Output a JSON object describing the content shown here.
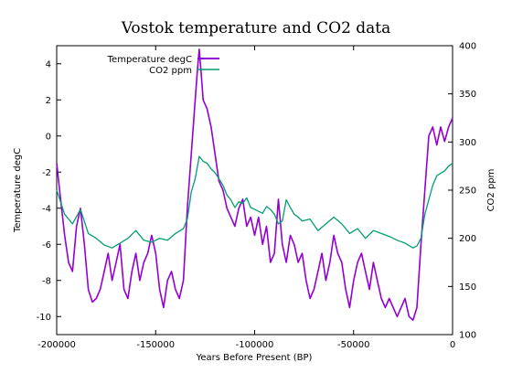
{
  "chart_data": {
    "type": "line",
    "title": "Vostok temperature and CO2 data",
    "xlabel": "Years Before Present (BP)",
    "ylabel": "Temperature degC",
    "y2label": "CO2 ppm",
    "xlim": [
      -200000,
      0
    ],
    "ylim": [
      -11,
      5
    ],
    "y2lim": [
      100,
      400
    ],
    "x_ticks": [
      -200000,
      -150000,
      -100000,
      -50000,
      0
    ],
    "x_tick_labels": [
      "-200000",
      "-150000",
      "-100000",
      "-50000",
      "0"
    ],
    "y_ticks": [
      4,
      2,
      0,
      -2,
      -4,
      -6,
      -8,
      -10
    ],
    "y_tick_labels": [
      "4",
      "2",
      "0",
      "-2",
      "-4",
      "-6",
      "-8",
      "-10"
    ],
    "y2_ticks": [
      100,
      150,
      200,
      250,
      300,
      350,
      400
    ],
    "y2_tick_labels": [
      "100",
      "150",
      "200",
      "250",
      "300",
      "350",
      "400"
    ],
    "grid": false,
    "legend": {
      "placement": "top-left"
    },
    "series": [
      {
        "name": "Temperature degC",
        "axis": "left",
        "color": "#9400d3",
        "x": [
          -200000,
          -198000,
          -196000,
          -194000,
          -192000,
          -190000,
          -188000,
          -186000,
          -184000,
          -182000,
          -180000,
          -178000,
          -176000,
          -174000,
          -172000,
          -170000,
          -168000,
          -166000,
          -164000,
          -162000,
          -160000,
          -158000,
          -156000,
          -154000,
          -152000,
          -150000,
          -148000,
          -146000,
          -144000,
          -142000,
          -140000,
          -138000,
          -136000,
          -134000,
          -132000,
          -130000,
          -129000,
          -128000,
          -127000,
          -126000,
          -124000,
          -122000,
          -120000,
          -118000,
          -116000,
          -114000,
          -112000,
          -110000,
          -108000,
          -106000,
          -104000,
          -102000,
          -100000,
          -98000,
          -96000,
          -94000,
          -92000,
          -90000,
          -88000,
          -86000,
          -84000,
          -82000,
          -80000,
          -78000,
          -76000,
          -74000,
          -72000,
          -70000,
          -68000,
          -66000,
          -64000,
          -62000,
          -60000,
          -58000,
          -56000,
          -54000,
          -52000,
          -50000,
          -48000,
          -46000,
          -44000,
          -42000,
          -40000,
          -38000,
          -36000,
          -34000,
          -32000,
          -30000,
          -28000,
          -26000,
          -24000,
          -22000,
          -20000,
          -18000,
          -16000,
          -14000,
          -12000,
          -10000,
          -8000,
          -6000,
          -4000,
          -2000,
          0
        ],
        "values": [
          -1.5,
          -3.5,
          -5.5,
          -7.0,
          -7.5,
          -5.0,
          -4.0,
          -6.0,
          -8.5,
          -9.2,
          -9.0,
          -8.5,
          -7.5,
          -6.5,
          -8.0,
          -7.0,
          -6.0,
          -8.5,
          -9.0,
          -7.5,
          -6.5,
          -8.0,
          -7.0,
          -6.5,
          -5.5,
          -6.5,
          -8.5,
          -9.5,
          -8.0,
          -7.5,
          -8.5,
          -9.0,
          -8.0,
          -4.0,
          -1.0,
          2.0,
          3.5,
          4.8,
          3.5,
          2.0,
          1.5,
          0.5,
          -1.0,
          -2.5,
          -3.0,
          -4.0,
          -4.5,
          -5.0,
          -4.0,
          -3.5,
          -5.0,
          -4.5,
          -5.5,
          -4.5,
          -6.0,
          -5.0,
          -7.0,
          -6.5,
          -3.5,
          -6.0,
          -7.0,
          -5.5,
          -6.0,
          -7.0,
          -6.5,
          -8.0,
          -9.0,
          -8.5,
          -7.5,
          -6.5,
          -8.0,
          -7.0,
          -5.5,
          -6.5,
          -7.0,
          -8.5,
          -9.5,
          -8.0,
          -7.0,
          -6.5,
          -7.5,
          -8.5,
          -7.0,
          -8.0,
          -9.0,
          -9.5,
          -9.0,
          -9.5,
          -10.0,
          -9.5,
          -9.0,
          -10.0,
          -10.2,
          -9.5,
          -6.0,
          -3.0,
          0.0,
          0.5,
          -0.5,
          0.5,
          -0.3,
          0.5,
          1.0
        ]
      },
      {
        "name": "CO2 ppm",
        "axis": "right",
        "color": "#009e73",
        "x": [
          -200000,
          -196000,
          -192000,
          -188000,
          -184000,
          -180000,
          -176000,
          -172000,
          -168000,
          -164000,
          -160000,
          -156000,
          -152000,
          -148000,
          -144000,
          -140000,
          -136000,
          -134000,
          -132000,
          -130000,
          -128000,
          -126000,
          -124000,
          -122000,
          -120000,
          -118000,
          -116000,
          -114000,
          -112000,
          -110000,
          -108000,
          -106000,
          -104000,
          -102000,
          -100000,
          -98000,
          -96000,
          -94000,
          -92000,
          -90000,
          -88000,
          -86000,
          -84000,
          -82000,
          -80000,
          -78000,
          -76000,
          -72000,
          -68000,
          -64000,
          -60000,
          -56000,
          -52000,
          -48000,
          -44000,
          -40000,
          -36000,
          -32000,
          -28000,
          -24000,
          -20000,
          -18000,
          -16000,
          -14000,
          -12000,
          -10000,
          -8000,
          -4000,
          -2000,
          0
        ],
        "values": [
          250,
          225,
          215,
          230,
          205,
          200,
          193,
          190,
          195,
          200,
          208,
          198,
          196,
          200,
          198,
          205,
          210,
          220,
          248,
          262,
          285,
          280,
          278,
          272,
          268,
          262,
          255,
          245,
          240,
          232,
          238,
          236,
          242,
          232,
          230,
          228,
          226,
          233,
          230,
          225,
          215,
          218,
          240,
          232,
          225,
          222,
          218,
          220,
          208,
          215,
          222,
          215,
          205,
          210,
          200,
          208,
          205,
          202,
          198,
          195,
          190,
          192,
          200,
          225,
          240,
          255,
          265,
          270,
          275,
          278
        ]
      }
    ]
  }
}
